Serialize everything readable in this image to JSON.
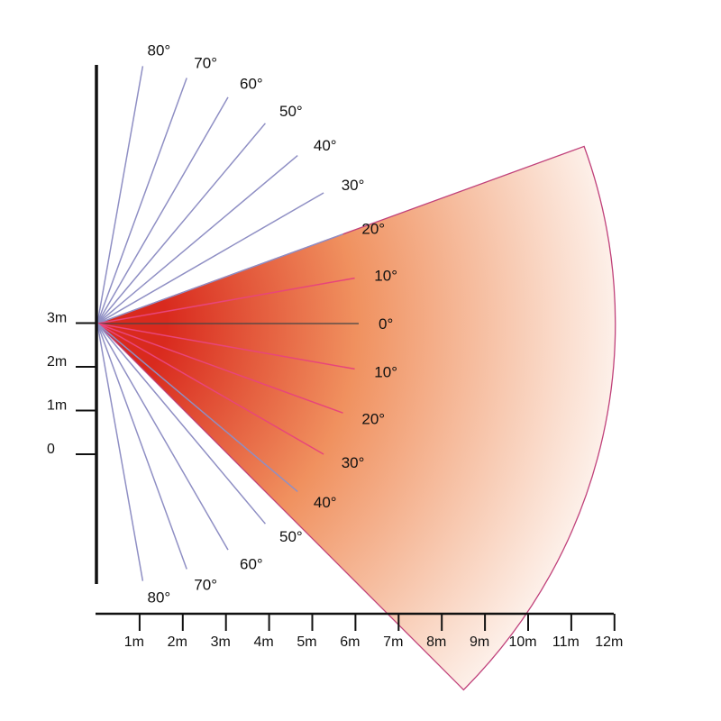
{
  "colors": {
    "axis": "#111111",
    "ray": "#8f8fc4",
    "ray_in_cone": "#e8457a",
    "zero_line": "#444444",
    "cone_outline": "#c0417a",
    "cone_hot": "#d92a1e",
    "cone_mid": "#f0915f",
    "cone_cool": "#ffffff"
  },
  "coverage": {
    "range_m": 12,
    "angle_up_deg": 20,
    "angle_down_deg": 45
  },
  "vertical_axis": {
    "ticks": [
      {
        "label": "3m",
        "value": 3
      },
      {
        "label": "2m",
        "value": 2
      },
      {
        "label": "1m",
        "value": 1
      },
      {
        "label": "0",
        "value": 0
      }
    ]
  },
  "horizontal_axis": {
    "ticks": [
      {
        "label": "1m",
        "value": 1
      },
      {
        "label": "2m",
        "value": 2
      },
      {
        "label": "3m",
        "value": 3
      },
      {
        "label": "4m",
        "value": 4
      },
      {
        "label": "5m",
        "value": 5
      },
      {
        "label": "6m",
        "value": 6
      },
      {
        "label": "7m",
        "value": 7
      },
      {
        "label": "8m",
        "value": 8
      },
      {
        "label": "9m",
        "value": 9
      },
      {
        "label": "10m",
        "value": 10
      },
      {
        "label": "11m",
        "value": 11
      },
      {
        "label": "12m",
        "value": 12
      }
    ]
  },
  "angle_rays": [
    {
      "label": "80°",
      "angle": 80,
      "side": "up"
    },
    {
      "label": "70°",
      "angle": 70,
      "side": "up"
    },
    {
      "label": "60°",
      "angle": 60,
      "side": "up"
    },
    {
      "label": "50°",
      "angle": 50,
      "side": "up"
    },
    {
      "label": "40°",
      "angle": 40,
      "side": "up"
    },
    {
      "label": "30°",
      "angle": 30,
      "side": "up"
    },
    {
      "label": "20°",
      "angle": 20,
      "side": "up"
    },
    {
      "label": "10°",
      "angle": 10,
      "side": "up",
      "in_cone": true
    },
    {
      "label": "0°",
      "angle": 0,
      "side": "center"
    },
    {
      "label": "10°",
      "angle": 10,
      "side": "down",
      "in_cone": true
    },
    {
      "label": "20°",
      "angle": 20,
      "side": "down",
      "in_cone": true
    },
    {
      "label": "30°",
      "angle": 30,
      "side": "down",
      "in_cone": true
    },
    {
      "label": "40°",
      "angle": 40,
      "side": "down"
    },
    {
      "label": "50°",
      "angle": 50,
      "side": "down"
    },
    {
      "label": "60°",
      "angle": 60,
      "side": "down"
    },
    {
      "label": "70°",
      "angle": 70,
      "side": "down"
    },
    {
      "label": "80°",
      "angle": 80,
      "side": "down"
    }
  ]
}
